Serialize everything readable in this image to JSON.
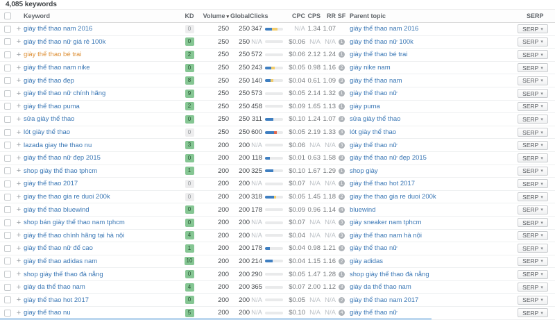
{
  "header": {
    "count_label": "4,085 keywords"
  },
  "colors": {
    "link_blue": "#3a77b5",
    "link_orange": "#dd8f35",
    "kd_green_bg": "#85c693",
    "kd_gray_bg": "#ededee",
    "bar_blue": "#3f7fc1",
    "bar_yellow": "#f2cd6d",
    "bar_red": "#e0694f"
  },
  "columns": {
    "keyword": "Keyword",
    "kd": "KD",
    "volume": "Volume",
    "global": "Global",
    "clicks": "Clicks",
    "cpc": "CPC",
    "cps": "CPS",
    "rr": "RR",
    "sf": "SF",
    "parent_topic": "Parent topic",
    "serp": "SERP"
  },
  "icons": {
    "sort_desc_icon": "▾",
    "chevron_down_icon": "▾",
    "expand_plus_icon": "+"
  },
  "table": {
    "serp_button_label": "SERP",
    "rows": [
      {
        "keyword": "giày thể thao nam 2016",
        "kw_style": "link",
        "kd": "0",
        "kd_style": "gray",
        "volume": "250",
        "global": "250",
        "clicks": "347",
        "bar": [
          [
            "blue",
            38
          ],
          [
            "yellow",
            30
          ]
        ],
        "cpc": "N/A",
        "cps": "1.34",
        "rr": "1.07",
        "sf": "",
        "parent": "giày thể thao nam 2016"
      },
      {
        "keyword": "giày thể thao nữ giá rẻ 100k",
        "kw_style": "link",
        "kd": "0",
        "kd_style": "green",
        "volume": "250",
        "global": "250",
        "clicks": "N/A",
        "bar": [],
        "cpc": "$0.06",
        "cps": "N/A",
        "rr": "N/A",
        "sf": "1",
        "parent": "giày thể thao nữ 100k"
      },
      {
        "keyword": "giày thể thao bé trai",
        "kw_style": "orange",
        "kd": "2",
        "kd_style": "green",
        "volume": "250",
        "global": "250",
        "clicks": "572",
        "bar": [],
        "cpc": "$0.06",
        "cps": "2.12",
        "rr": "1.24",
        "sf": "1",
        "parent": "giày thể thao bé trai"
      },
      {
        "keyword": "giày thể thao nam nike",
        "kw_style": "link",
        "kd": "0",
        "kd_style": "green",
        "volume": "250",
        "global": "250",
        "clicks": "243",
        "bar": [
          [
            "blue",
            33
          ],
          [
            "yellow",
            22
          ]
        ],
        "cpc": "$0.05",
        "cps": "0.98",
        "rr": "1.16",
        "sf": "2",
        "parent": "giày nike nam"
      },
      {
        "keyword": "giày thể thao đẹp",
        "kw_style": "link",
        "kd": "8",
        "kd_style": "green",
        "volume": "250",
        "global": "250",
        "clicks": "140",
        "bar": [
          [
            "blue",
            30
          ],
          [
            "yellow",
            15
          ]
        ],
        "cpc": "$0.04",
        "cps": "0.61",
        "rr": "1.09",
        "sf": "3",
        "parent": "giày thể thao nam"
      },
      {
        "keyword": "giày thể thao nữ chính hãng",
        "kw_style": "link",
        "kd": "9",
        "kd_style": "green",
        "volume": "250",
        "global": "250",
        "clicks": "573",
        "bar": [],
        "cpc": "$0.05",
        "cps": "2.14",
        "rr": "1.32",
        "sf": "1",
        "parent": "giày thể thao nữ"
      },
      {
        "keyword": "giày thể thao puma",
        "kw_style": "link",
        "kd": "2",
        "kd_style": "green",
        "volume": "250",
        "global": "250",
        "clicks": "458",
        "bar": [],
        "cpc": "$0.09",
        "cps": "1.65",
        "rr": "1.13",
        "sf": "1",
        "parent": "giày puma"
      },
      {
        "keyword": "sửa giày thể thao",
        "kw_style": "link",
        "kd": "0",
        "kd_style": "green",
        "volume": "250",
        "global": "250",
        "clicks": "311",
        "bar": [
          [
            "blue",
            48
          ]
        ],
        "cpc": "$0.10",
        "cps": "1.24",
        "rr": "1.07",
        "sf": "3",
        "parent": "sửa giày thể thao"
      },
      {
        "keyword": "lót giày thể thao",
        "kw_style": "link",
        "kd": "0",
        "kd_style": "gray",
        "volume": "250",
        "global": "250",
        "clicks": "600",
        "bar": [
          [
            "blue",
            50
          ],
          [
            "red",
            17
          ]
        ],
        "cpc": "$0.05",
        "cps": "2.19",
        "rr": "1.33",
        "sf": "3",
        "parent": "lót giày thể thao"
      },
      {
        "keyword": "lazada giay the thao nu",
        "kw_style": "link",
        "kd": "3",
        "kd_style": "green",
        "volume": "200",
        "global": "200",
        "clicks": "N/A",
        "bar": [],
        "cpc": "$0.06",
        "cps": "N/A",
        "rr": "N/A",
        "sf": "3",
        "parent": "giày thể thao nữ"
      },
      {
        "keyword": "giày thể thao nữ đẹp 2015",
        "kw_style": "link",
        "kd": "0",
        "kd_style": "green",
        "volume": "200",
        "global": "200",
        "clicks": "118",
        "bar": [
          [
            "blue",
            28
          ]
        ],
        "cpc": "$0.01",
        "cps": "0.63",
        "rr": "1.58",
        "sf": "3",
        "parent": "giày thể thao nữ đẹp 2015"
      },
      {
        "keyword": "shop giày thể thao tphcm",
        "kw_style": "link",
        "kd": "1",
        "kd_style": "green",
        "volume": "200",
        "global": "200",
        "clicks": "325",
        "bar": [
          [
            "blue",
            45
          ]
        ],
        "cpc": "$0.10",
        "cps": "1.67",
        "rr": "1.29",
        "sf": "1",
        "parent": "shop giày"
      },
      {
        "keyword": "giày thể thao 2017",
        "kw_style": "link",
        "kd": "0",
        "kd_style": "gray",
        "volume": "200",
        "global": "200",
        "clicks": "N/A",
        "bar": [],
        "cpc": "$0.07",
        "cps": "N/A",
        "rr": "N/A",
        "sf": "1",
        "parent": "giày thể thao hot 2017"
      },
      {
        "keyword": "giay the thao gia re duoi 200k",
        "kw_style": "link",
        "kd": "0",
        "kd_style": "gray",
        "volume": "200",
        "global": "200",
        "clicks": "318",
        "bar": [
          [
            "blue",
            50
          ],
          [
            "yellow",
            12
          ]
        ],
        "cpc": "$0.05",
        "cps": "1.45",
        "rr": "1.18",
        "sf": "2",
        "parent": "giay the thao gia re duoi 200k"
      },
      {
        "keyword": "giày thể thao bluewind",
        "kw_style": "link",
        "kd": "0",
        "kd_style": "green",
        "volume": "200",
        "global": "200",
        "clicks": "178",
        "bar": [],
        "cpc": "$0.09",
        "cps": "0.96",
        "rr": "1.14",
        "sf": "4",
        "parent": "bluewind"
      },
      {
        "keyword": "shop bán giày thể thao nam tphcm",
        "kw_style": "link",
        "kd": "0",
        "kd_style": "green",
        "volume": "200",
        "global": "200",
        "clicks": "N/A",
        "bar": [],
        "cpc": "$0.07",
        "cps": "N/A",
        "rr": "N/A",
        "sf": "3",
        "parent": "giày sneaker nam tphcm"
      },
      {
        "keyword": "giày thể thao chính hãng tại hà nội",
        "kw_style": "link",
        "kd": "4",
        "kd_style": "green",
        "volume": "200",
        "global": "200",
        "clicks": "N/A",
        "bar": [],
        "cpc": "$0.04",
        "cps": "N/A",
        "rr": "N/A",
        "sf": "3",
        "parent": "giày thể thao nam hà nội"
      },
      {
        "keyword": "giày thể thao nữ đế cao",
        "kw_style": "link",
        "kd": "1",
        "kd_style": "green",
        "volume": "200",
        "global": "200",
        "clicks": "178",
        "bar": [
          [
            "blue",
            28
          ]
        ],
        "cpc": "$0.04",
        "cps": "0.98",
        "rr": "1.21",
        "sf": "3",
        "parent": "giày thể thao nữ"
      },
      {
        "keyword": "giày thể thao adidas nam",
        "kw_style": "link",
        "kd": "10",
        "kd_style": "green",
        "volume": "200",
        "global": "200",
        "clicks": "214",
        "bar": [
          [
            "blue",
            42
          ]
        ],
        "cpc": "$0.04",
        "cps": "1.15",
        "rr": "1.16",
        "sf": "2",
        "parent": "giày adidas"
      },
      {
        "keyword": "shop giày thể thao đà nẵng",
        "kw_style": "link",
        "kd": "0",
        "kd_style": "green",
        "volume": "200",
        "global": "200",
        "clicks": "290",
        "bar": [],
        "cpc": "$0.05",
        "cps": "1.47",
        "rr": "1.28",
        "sf": "1",
        "parent": "shop giày thể thao đà nẵng"
      },
      {
        "keyword": "giày da thể thao nam",
        "kw_style": "link",
        "kd": "4",
        "kd_style": "green",
        "volume": "200",
        "global": "200",
        "clicks": "365",
        "bar": [],
        "cpc": "$0.07",
        "cps": "2.00",
        "rr": "1.12",
        "sf": "3",
        "parent": "giày da thể thao nam"
      },
      {
        "keyword": "giày thể thao hot 2017",
        "kw_style": "link",
        "kd": "0",
        "kd_style": "green",
        "volume": "200",
        "global": "200",
        "clicks": "N/A",
        "bar": [],
        "cpc": "$0.05",
        "cps": "N/A",
        "rr": "N/A",
        "sf": "2",
        "parent": "giày thể thao nam 2017"
      },
      {
        "keyword": "giay thể thao nu",
        "kw_style": "link",
        "kd": "5",
        "kd_style": "green",
        "volume": "200",
        "global": "200",
        "clicks": "N/A",
        "bar": [],
        "cpc": "$0.10",
        "cps": "N/A",
        "rr": "N/A",
        "sf": "4",
        "parent": "giày thể thao nữ"
      }
    ]
  }
}
